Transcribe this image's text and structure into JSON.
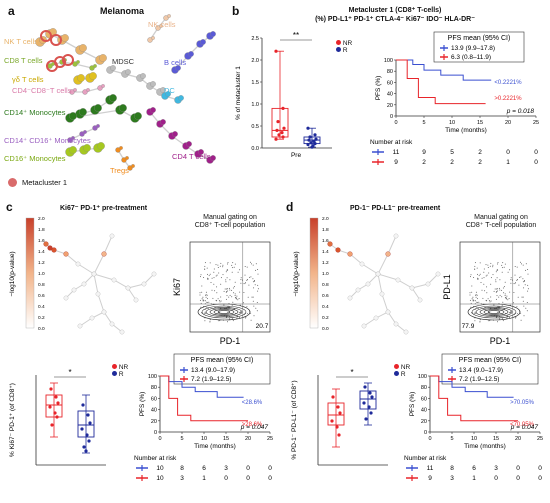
{
  "panel_a": {
    "letter": "a",
    "title": "Melanoma",
    "labels": {
      "nk_t": "NK T cells",
      "nk": "NK cells",
      "cd8": "CD8 T cells",
      "mdsc": "MDSC",
      "bcell": "B cells",
      "gd": "γδ T cells",
      "dn": "CD4⁻CD8⁻T cells",
      "dc": "DC",
      "cd14": "CD14⁺ Monocytes",
      "cd14cd16": "CD14⁺ CD16⁺ Monocytes",
      "cd4": "CD4 T cells",
      "cd16": "CD16⁺ Monocytes",
      "tregs": "Tregs"
    },
    "legend": "Metacluster 1",
    "colors": {
      "nk_t": "#e8b36a",
      "nk": "#f0c8a8",
      "cd8": "#9bc23c",
      "mdsc": "#bdbdbd",
      "bcell": "#5a5ad6",
      "gd": "#e0c020",
      "dn": "#e6a0c0",
      "dc": "#40b8e0",
      "cd14": "#2d7a1e",
      "cd14cd16": "#9a5fc0",
      "cd4": "#a0208a",
      "cd16": "#a6c820",
      "tregs": "#f08c1e",
      "metacluster": "#d9534f"
    }
  },
  "panel_b": {
    "letter": "b",
    "title_line1": "Metacluster 1 (CD8⁺ T-cells)",
    "title_line2": "(%) PD-L1⁺ PD-1⁺ CTLA-4⁻ Ki67⁻ IDO⁻ HLA-DR⁻",
    "box": {
      "ylabel": "% of metacluster 1",
      "yticks": [
        "0.0",
        "0.5",
        "1.0",
        "1.5",
        "2.0",
        "2.5"
      ],
      "xlabel": "Pre",
      "signif": "**",
      "legend_nr": "NR",
      "legend_r": "R",
      "nr_points": [
        2.2,
        0.9,
        0.6,
        0.45,
        0.4,
        0.35,
        0.3,
        0.25,
        0.2
      ],
      "r_points": [
        0.45,
        0.3,
        0.25,
        0.2,
        0.18,
        0.15,
        0.12,
        0.1,
        0.08,
        0.05,
        0.02
      ]
    },
    "km": {
      "pfs_title": "PFS mean (95% CI)",
      "series_blue": "13.9 (9.9–17.8)",
      "series_red": "6.3 (0.8–11.9)",
      "label_blue": "<0.2221%",
      "label_red": ">0.2221%",
      "pvalue": "p = 0.018",
      "ylabel": "PFS (%)",
      "xlabel": "Time (months)",
      "xticks": [
        "0",
        "5",
        "10",
        "15",
        "20",
        "25"
      ],
      "yticks": [
        "0",
        "20",
        "40",
        "60",
        "80",
        "100"
      ],
      "risk_title": "Number at risk",
      "risk_blue": [
        "11",
        "9",
        "5",
        "2",
        "0",
        "0"
      ],
      "risk_red": [
        "9",
        "2",
        "2",
        "2",
        "1",
        "0"
      ]
    }
  },
  "panel_c": {
    "letter": "c",
    "title": "Ki67⁻ PD-1⁺ pre-treatment",
    "colorbar_label": "−log10(p-value)",
    "colorbar_ticks": [
      "2.0",
      "1.8",
      "1.6",
      "1.4",
      "1.2",
      "1.0",
      "0.8",
      "0.6",
      "0.4",
      "0.2",
      "0.0"
    ],
    "gating_title": "Manual gating on",
    "gating_sub": "CD8⁺ T-cell population",
    "flow_y": "Ki67",
    "flow_x": "PD-1",
    "flow_value": "20.7",
    "box": {
      "ylabel": "% Ki67⁻ PD-1⁺ (of CD8⁺)",
      "signif": "*",
      "legend_nr": "NR",
      "legend_r": "R"
    },
    "km": {
      "pfs_title": "PFS mean (95% CI)",
      "series_blue": "13.4 (9.0–17.9)",
      "series_red": "7.2 (1.9–12.5)",
      "label_blue": "<28.6%",
      "label_red": ">28.6%",
      "pvalue": "p = 0.047",
      "ylabel": "PFS (%)",
      "xlabel": "Time (months)",
      "xticks": [
        "0",
        "5",
        "10",
        "15",
        "20",
        "25"
      ],
      "yticks": [
        "0",
        "20",
        "40",
        "60",
        "80",
        "100"
      ],
      "risk_title": "Number at risk",
      "risk_blue": [
        "10",
        "8",
        "6",
        "3",
        "0",
        "0"
      ],
      "risk_red": [
        "10",
        "3",
        "1",
        "0",
        "0",
        "0"
      ]
    }
  },
  "panel_d": {
    "letter": "d",
    "title": "PD-1⁻ PD-L1⁻ pre-treament",
    "colorbar_label": "−log10(p-value)",
    "colorbar_ticks": [
      "2.0",
      "1.8",
      "1.6",
      "1.4",
      "1.2",
      "1.0",
      "0.8",
      "0.6",
      "0.4",
      "0.2",
      "0.0"
    ],
    "gating_title": "Manual gating on",
    "gating_sub": "CD8⁺ T-cell population",
    "flow_y": "PD-L1",
    "flow_x": "PD-1",
    "flow_value": "77.9",
    "box": {
      "ylabel": "% PD-1⁻ PD-L1⁻ (of CD8⁺)",
      "signif": "*",
      "legend_nr": "NR",
      "legend_r": "R"
    },
    "km": {
      "pfs_title": "PFS mean (95% CI)",
      "series_blue": "13.4 (9.0–17.9)",
      "series_red": "7.2 (1.9–12.5)",
      "label_blue": ">70.05%",
      "label_red": "<70.05%",
      "pvalue": "p = 0.047",
      "ylabel": "PFS (%)",
      "xlabel": "Time (months)",
      "xticks": [
        "0",
        "5",
        "10",
        "15",
        "20",
        "25"
      ],
      "yticks": [
        "0",
        "20",
        "40",
        "60",
        "80",
        "100"
      ],
      "risk_title": "Number at risk",
      "risk_blue": [
        "11",
        "8",
        "6",
        "3",
        "0",
        "0"
      ],
      "risk_red": [
        "9",
        "3",
        "1",
        "0",
        "0",
        "0"
      ]
    }
  },
  "colors": {
    "nr": "#e8242a",
    "r": "#1e2a9a",
    "km_blue": "#3a4fd0",
    "km_red": "#e8242a"
  }
}
